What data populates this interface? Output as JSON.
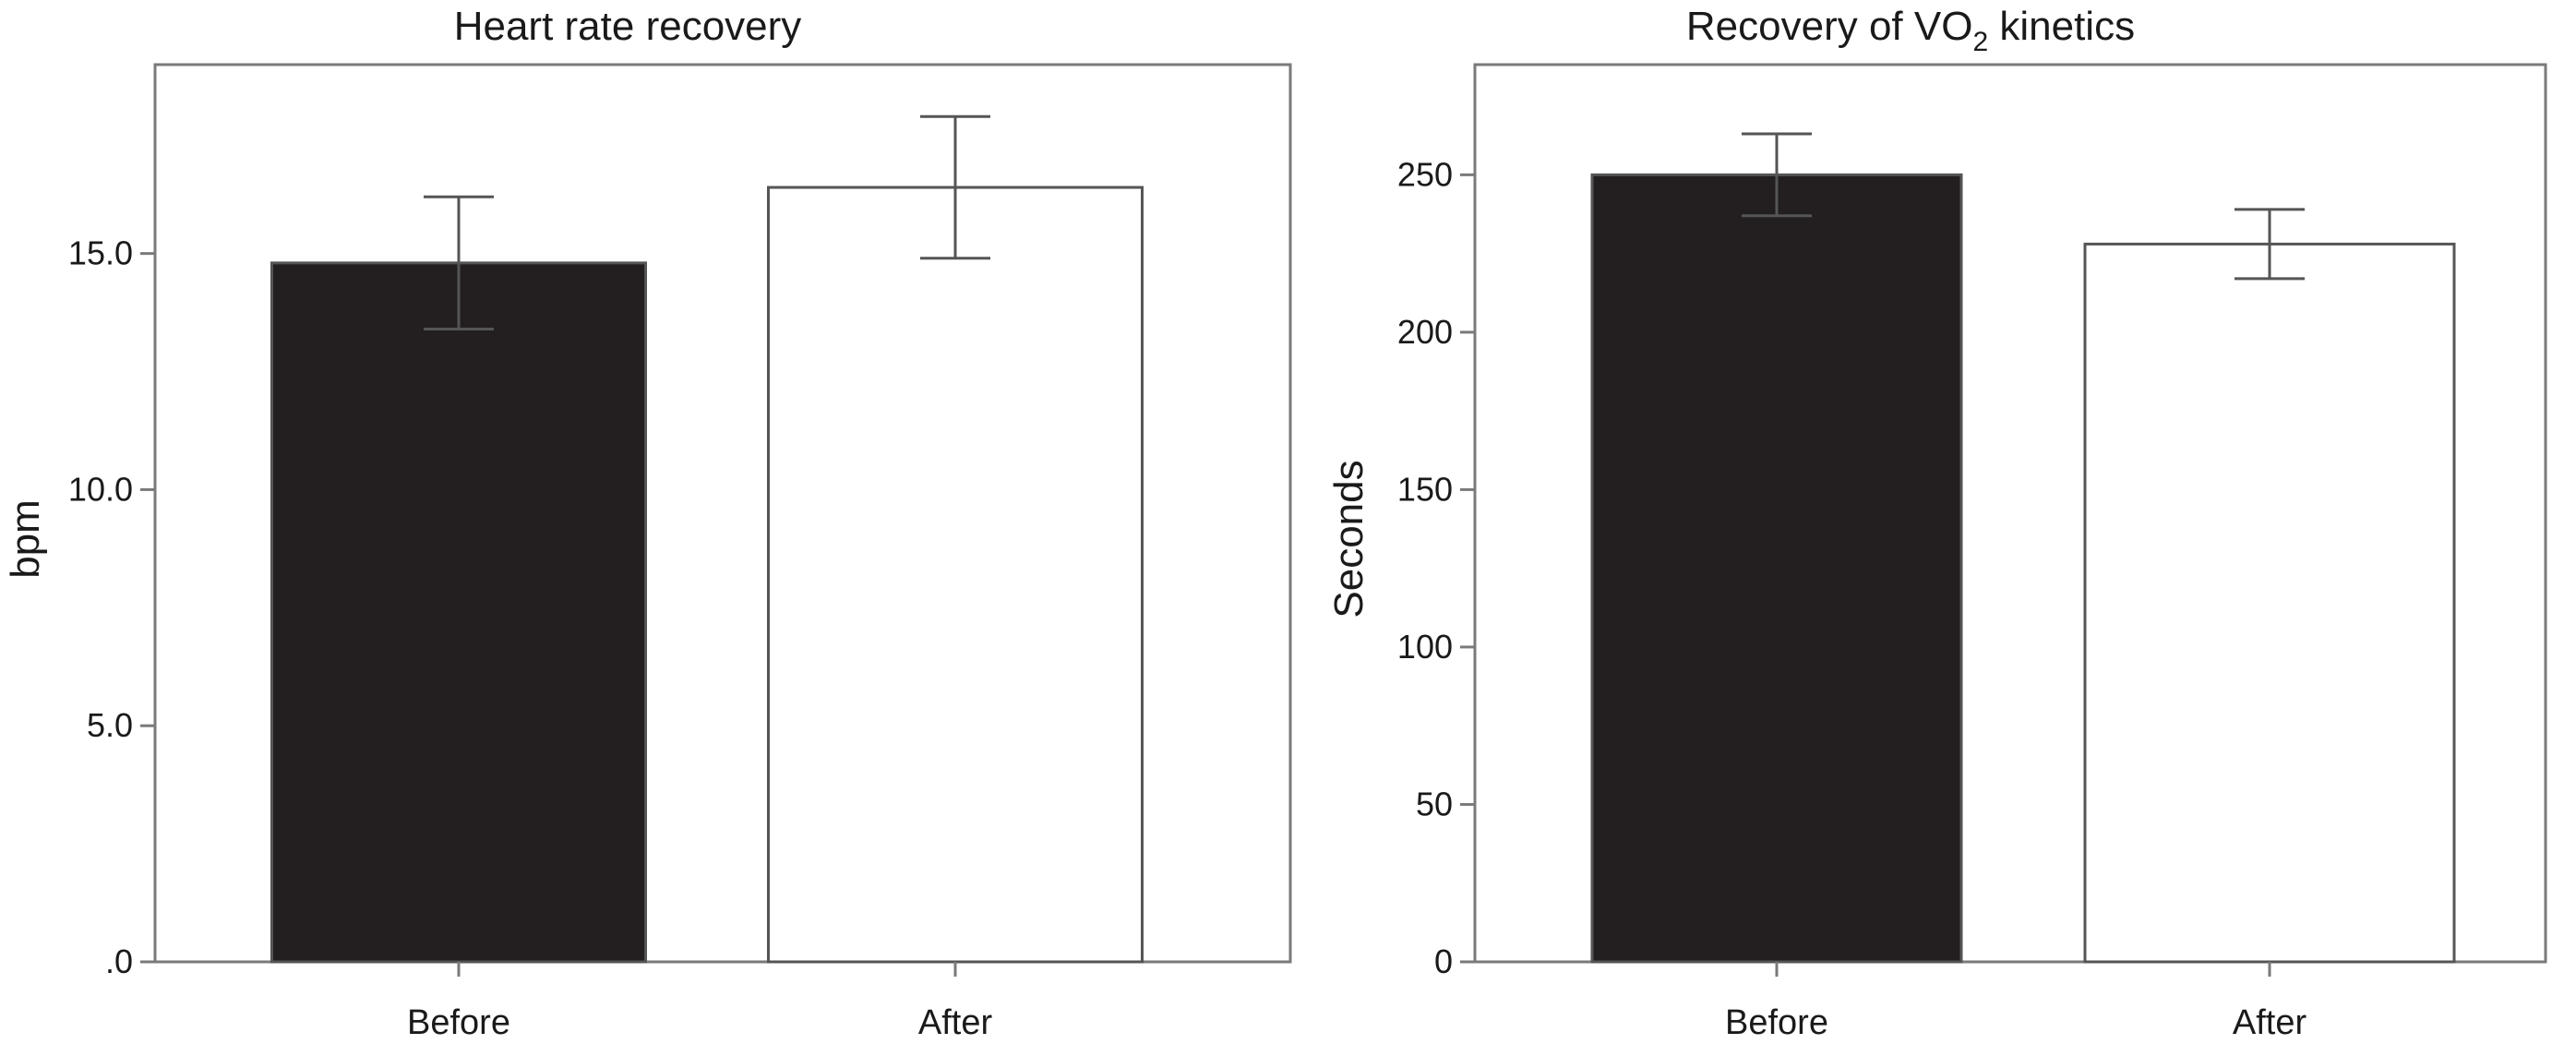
{
  "chart_data": [
    {
      "type": "bar",
      "title": "Heart rate recovery",
      "ylabel": "bpm",
      "xlabel": "",
      "categories": [
        "Before",
        "After"
      ],
      "values": [
        14.8,
        16.4
      ],
      "error": [
        1.4,
        1.5
      ],
      "bar_colors": [
        "#231f20",
        "#ffffff"
      ],
      "ylim": [
        0,
        19
      ],
      "yticks": [
        0,
        5,
        10,
        15
      ],
      "ytick_labels": [
        ".0",
        "5.0",
        "10.0",
        "15.0"
      ],
      "grid": false,
      "legend": "none"
    },
    {
      "type": "bar",
      "title": "Recovery of VO",
      "title_sub": "2",
      "title_suffix": " kinetics",
      "ylabel": "Seconds",
      "xlabel": "",
      "categories": [
        "Before",
        "After"
      ],
      "values": [
        250,
        228
      ],
      "error": [
        13,
        11
      ],
      "bar_colors": [
        "#231f20",
        "#ffffff"
      ],
      "ylim": [
        0,
        285
      ],
      "yticks": [
        0,
        50,
        100,
        150,
        200,
        250
      ],
      "ytick_labels": [
        "0",
        "50",
        "100",
        "150",
        "200",
        "250"
      ],
      "grid": false,
      "legend": "none"
    }
  ]
}
